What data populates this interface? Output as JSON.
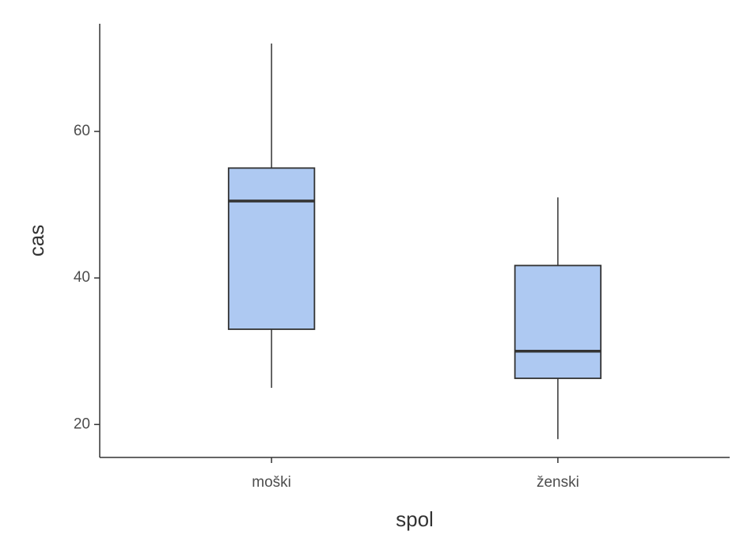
{
  "chart_data": {
    "type": "box",
    "x_label": "spol",
    "y_label": "cas",
    "categories": [
      "moški",
      "ženski"
    ],
    "boxes": [
      {
        "min": 25,
        "q1": 33,
        "median": 50.5,
        "q3": 55,
        "max": 72
      },
      {
        "min": 18,
        "q1": 26.3,
        "median": 30,
        "q3": 41.7,
        "max": 51
      }
    ],
    "color": "#aec9f2",
    "edge_color": "#333333",
    "ylim": [
      15.5,
      74.7
    ],
    "yticks": [
      20,
      40,
      60
    ],
    "grid": false
  }
}
